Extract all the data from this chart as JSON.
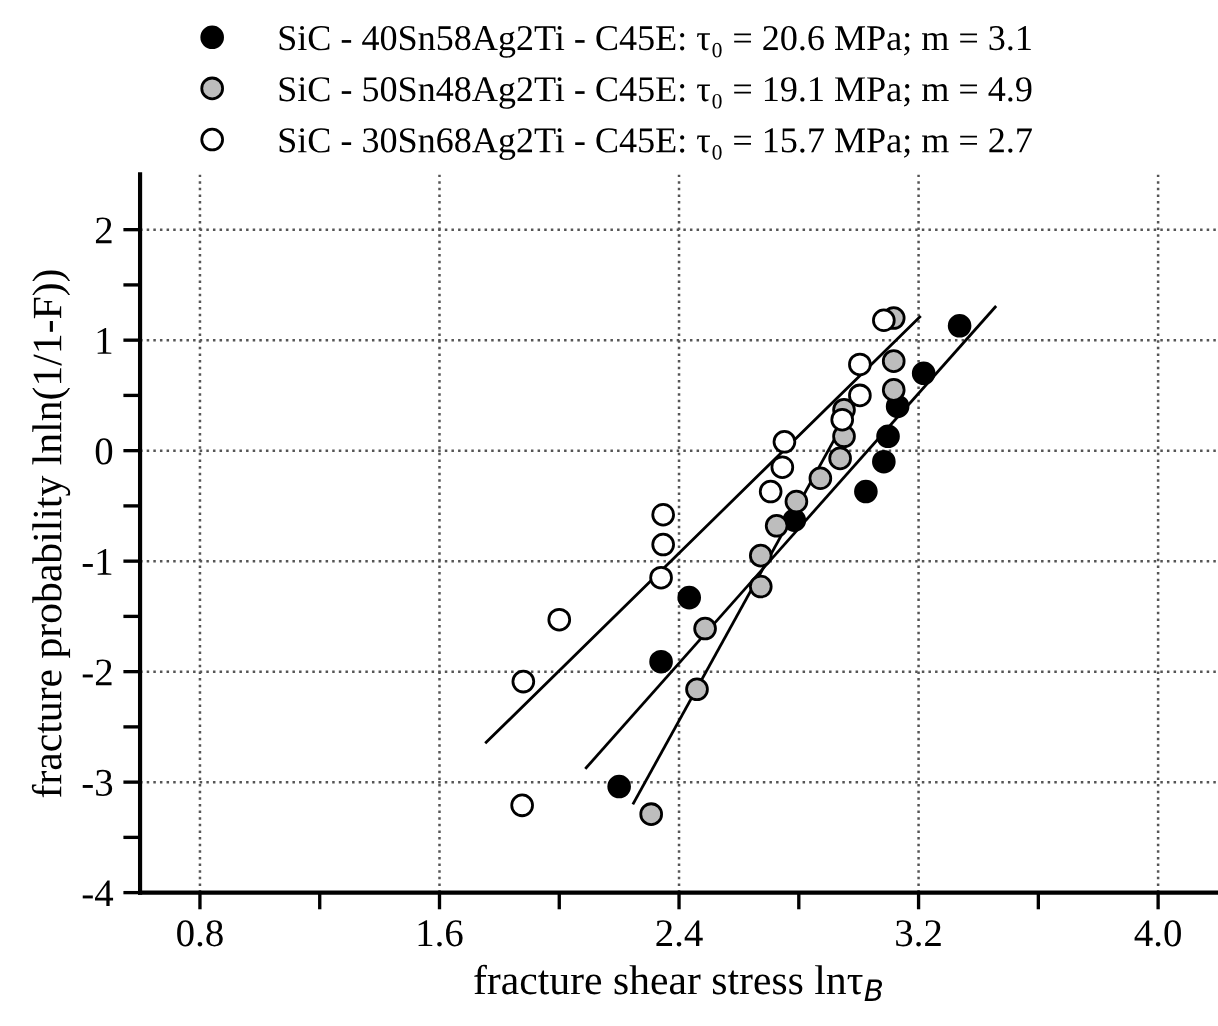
{
  "chart_data": {
    "type": "scatter",
    "xlabel": "fracture shear stress lnτ$_{B}$",
    "ylabel": "fracture probability lnln(1/1-F))",
    "xlim": [
      0.6,
      4.2
    ],
    "ylim": [
      -4,
      2.5
    ],
    "xticks": [
      {
        "value": 0.8,
        "label": "0.8"
      },
      {
        "value": 1.2,
        "label": null
      },
      {
        "value": 1.6,
        "label": "1.6"
      },
      {
        "value": 2.0,
        "label": null
      },
      {
        "value": 2.4,
        "label": "2.4"
      },
      {
        "value": 2.8,
        "label": null
      },
      {
        "value": 3.2,
        "label": "3.2"
      },
      {
        "value": 3.6,
        "label": null
      },
      {
        "value": 4.0,
        "label": "4.0"
      }
    ],
    "yticks": [
      -4,
      {
        "value": -3.5,
        "label": null
      },
      -3,
      {
        "value": -2.5,
        "label": null
      },
      -2,
      {
        "value": -1.5,
        "label": null
      },
      -1,
      {
        "value": -0.5,
        "label": null
      },
      0,
      {
        "value": 0.5,
        "label": null
      },
      1,
      {
        "value": 1.5,
        "label": null
      },
      2
    ],
    "grid": true,
    "legend": "top",
    "series": [
      {
        "name": "SiC - 40Sn58Ag2Ti - C45E: τ₀ = 20.6 MPa; m = 3.1",
        "color": "#000000",
        "marker": "circle",
        "x": [
          3.337,
          3.217,
          3.13,
          3.098,
          3.084,
          3.024,
          2.785,
          2.434,
          2.34,
          2.2
        ],
        "values": [
          1.13,
          0.7,
          0.4,
          0.13,
          -0.1,
          -0.37,
          -0.63,
          -1.33,
          -1.91,
          -3.04
        ]
      },
      {
        "name": "SiC - 50Sn48Ag2Ti - C45E: τ₀ = 19.1 MPa; m = 4.9",
        "color": "#bdbdbd",
        "marker": "circle",
        "x": [
          3.117,
          3.117,
          3.117,
          2.951,
          2.951,
          2.938,
          2.872,
          2.792,
          2.726,
          2.673,
          2.673,
          2.487,
          2.46,
          2.307
        ],
        "values": [
          1.2,
          0.81,
          0.55,
          0.37,
          0.13,
          -0.07,
          -0.25,
          -0.46,
          -0.68,
          -0.95,
          -1.23,
          -1.61,
          -2.16,
          -3.29
        ]
      },
      {
        "name": "SiC - 30Sn68Ag2Ti - C45E: τ₀ = 15.7 MPa; m = 2.7",
        "color": "#ffffff",
        "marker": "circle",
        "x": [
          3.084,
          3.004,
          3.004,
          2.945,
          2.752,
          2.745,
          2.706,
          2.347,
          2.347,
          2.34,
          2.0,
          1.88,
          1.876
        ],
        "values": [
          1.18,
          0.78,
          0.5,
          0.28,
          0.08,
          -0.15,
          -0.37,
          -0.58,
          -0.85,
          -1.15,
          -1.53,
          -2.09,
          -3.21
        ]
      },
      {
        "type": "line",
        "color": "#000000",
        "x": [
          1.756,
          3.204
        ],
        "values": [
          -2.64,
          1.21
        ]
      },
      {
        "type": "line",
        "color": "#000000",
        "x": [
          2.09,
          3.456
        ],
        "values": [
          -2.87,
          1.3
        ]
      },
      {
        "type": "line",
        "color": "#000000",
        "x": [
          2.248,
          3.0
        ],
        "values": [
          -3.19,
          0.5
        ]
      }
    ]
  }
}
